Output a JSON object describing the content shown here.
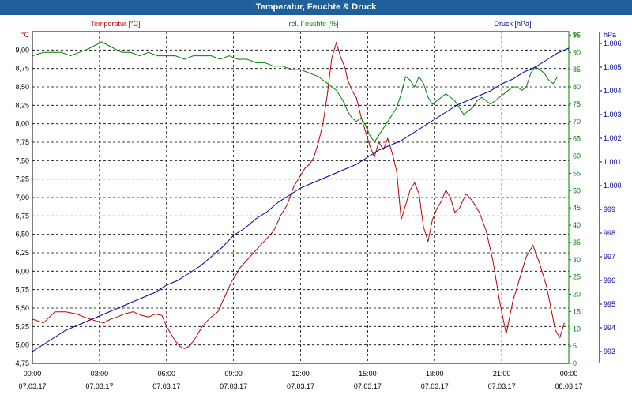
{
  "title": "Temperatur, Feuchte & Druck",
  "chart_data": {
    "type": "line",
    "title": "Temperatur, Feuchte & Druck",
    "grid": true,
    "x_ticks": [
      {
        "time": "00:00",
        "date": "07.03.17"
      },
      {
        "time": "03:00",
        "date": "07.03.17"
      },
      {
        "time": "06:00",
        "date": "07.03.17"
      },
      {
        "time": "09:00",
        "date": "07.03.17"
      },
      {
        "time": "12:00",
        "date": "07.03.17"
      },
      {
        "time": "15:00",
        "date": "07.03.17"
      },
      {
        "time": "18:00",
        "date": "07.03.17"
      },
      {
        "time": "21:00",
        "date": "07.03.17"
      },
      {
        "time": "00:00",
        "date": "08.03.17"
      }
    ],
    "x_range_hours": [
      0,
      24
    ],
    "axes": {
      "temp": {
        "unit": "°C",
        "label": "Temperatur [°C]",
        "range": [
          4.75,
          9.25
        ],
        "ticks": [
          "4,75",
          "5,00",
          "5,25",
          "5,50",
          "5,75",
          "6,00",
          "6,25",
          "6,50",
          "6,75",
          "7,00",
          "7,25",
          "7,50",
          "7,75",
          "8,00",
          "8,25",
          "8,50",
          "8,75",
          "9,00"
        ],
        "color": "#c00000"
      },
      "hum": {
        "unit": "%",
        "label": "rel. Feuchte [%]",
        "range": [
          0,
          96
        ],
        "ticks": [
          "0",
          "5",
          "10",
          "15",
          "20",
          "25",
          "30",
          "35",
          "40",
          "45",
          "50",
          "55",
          "60",
          "65",
          "70",
          "75",
          "80",
          "85",
          "90",
          "95"
        ],
        "color": "#008000"
      },
      "press": {
        "unit": "hPa",
        "label": "Druck [hPa]",
        "range": [
          992.5,
          1006.5
        ],
        "ticks": [
          "993",
          "994",
          "995",
          "996",
          "997",
          "998",
          "999",
          "1.000",
          "1.001",
          "1.002",
          "1.003",
          "1.004",
          "1.005",
          "1.006"
        ],
        "color": "#00009a"
      }
    },
    "series": [
      {
        "name": "Temperatur [°C]",
        "axis": "temp",
        "color": "#c00000",
        "x": [
          0,
          0.5,
          1,
          1.5,
          2,
          2.3,
          2.6,
          2.9,
          3.2,
          3.5,
          3.8,
          4.1,
          4.5,
          4.9,
          5.2,
          5.5,
          5.8,
          6,
          6.2,
          6.4,
          6.6,
          6.8,
          7,
          7.2,
          7.4,
          7.6,
          7.8,
          8,
          8.3,
          8.6,
          8.9,
          9.1,
          9.3,
          9.6,
          9.9,
          10.2,
          10.5,
          10.8,
          11.1,
          11.4,
          11.7,
          12,
          12.2,
          12.4,
          12.6,
          12.8,
          13,
          13.2,
          13.4,
          13.6,
          13.8,
          14,
          14.1,
          14.3,
          14.5,
          14.7,
          14.9,
          15.1,
          15.3,
          15.5,
          15.7,
          15.9,
          16.1,
          16.3,
          16.5,
          16.7,
          16.9,
          17.1,
          17.3,
          17.5,
          17.7,
          17.9,
          18.1,
          18.3,
          18.5,
          18.7,
          18.9,
          19.1,
          19.4,
          19.7,
          20,
          20.3,
          20.6,
          20.9,
          21.2,
          21.5,
          21.8,
          22.1,
          22.4,
          22.7,
          23,
          23.2,
          23.4,
          23.6,
          23.8
        ],
        "y": [
          5.35,
          5.3,
          5.45,
          5.45,
          5.42,
          5.38,
          5.35,
          5.32,
          5.3,
          5.35,
          5.38,
          5.42,
          5.45,
          5.4,
          5.38,
          5.42,
          5.4,
          5.25,
          5.15,
          5.05,
          4.98,
          4.95,
          4.98,
          5.05,
          5.15,
          5.25,
          5.32,
          5.38,
          5.45,
          5.65,
          5.85,
          5.95,
          6.05,
          6.15,
          6.25,
          6.35,
          6.45,
          6.55,
          6.75,
          6.9,
          7.15,
          7.3,
          7.4,
          7.45,
          7.55,
          7.75,
          8.0,
          8.4,
          8.9,
          9.1,
          8.9,
          8.75,
          8.6,
          8.45,
          8.35,
          8.1,
          7.9,
          7.7,
          7.55,
          7.75,
          7.65,
          7.8,
          7.6,
          7.35,
          6.7,
          6.9,
          7.1,
          7.2,
          7.05,
          6.6,
          6.4,
          6.7,
          6.85,
          6.95,
          7.1,
          7.0,
          6.8,
          6.85,
          7.05,
          6.95,
          6.8,
          6.55,
          6.15,
          5.6,
          5.15,
          5.6,
          5.9,
          6.2,
          6.35,
          6.1,
          5.8,
          5.5,
          5.2,
          5.1,
          5.3
        ],
        "note_placeholder": ""
      },
      {
        "name": "rel. Feuchte [%]",
        "axis": "hum",
        "color": "#008000",
        "x": [
          0,
          0.5,
          0.9,
          1.3,
          1.7,
          2.1,
          2.5,
          2.8,
          3.1,
          3.4,
          3.7,
          4.0,
          4.4,
          4.8,
          5.2,
          5.6,
          6,
          6.4,
          6.8,
          7.2,
          7.6,
          8,
          8.4,
          8.8,
          9.2,
          9.6,
          10,
          10.4,
          10.8,
          11.2,
          11.6,
          12,
          12.4,
          12.8,
          13.2,
          13.6,
          13.9,
          14.1,
          14.3,
          14.5,
          14.7,
          14.9,
          15.1,
          15.3,
          15.5,
          15.7,
          15.9,
          16.1,
          16.3,
          16.5,
          16.7,
          16.9,
          17.1,
          17.3,
          17.5,
          17.7,
          17.9,
          18.1,
          18.3,
          18.5,
          18.7,
          18.9,
          19.1,
          19.3,
          19.5,
          19.7,
          19.9,
          20.1,
          20.3,
          20.5,
          20.7,
          20.9,
          21.1,
          21.3,
          21.5,
          21.7,
          21.9,
          22.1,
          22.3,
          22.5,
          22.7,
          22.9,
          23.1,
          23.3,
          23.5
        ],
        "y": [
          89,
          90,
          90,
          90,
          89,
          90,
          91,
          92,
          93,
          92,
          91,
          90,
          90,
          89,
          90,
          89,
          89,
          89,
          88,
          89,
          89,
          89,
          88,
          89,
          88,
          88,
          87,
          87,
          86,
          86,
          85,
          85,
          84,
          83,
          81,
          79,
          76,
          73,
          71,
          70,
          71,
          69,
          66,
          64,
          66,
          68,
          70,
          72,
          74,
          78,
          83,
          82,
          80,
          83,
          81,
          77,
          75,
          76,
          77,
          78,
          77,
          76,
          74,
          72,
          73,
          74,
          76,
          77,
          76,
          75,
          76,
          77,
          78,
          79,
          80,
          80,
          79,
          80,
          84,
          86,
          85,
          84,
          82,
          81,
          83
        ],
        "note_placeholder": ""
      },
      {
        "name": "Druck [hPa]",
        "axis": "press",
        "color": "#00009a",
        "x": [
          0,
          0.5,
          1,
          1.5,
          2,
          2.5,
          3,
          3.5,
          4,
          4.5,
          5,
          5.5,
          6,
          6.5,
          7,
          7.5,
          8,
          8.5,
          9,
          9.5,
          10,
          10.5,
          11,
          11.5,
          12,
          12.5,
          13,
          13.5,
          14,
          14.5,
          15,
          15.5,
          16,
          16.5,
          17,
          17.5,
          18,
          18.5,
          19,
          19.5,
          20,
          20.5,
          21,
          21.5,
          22,
          22.5,
          23,
          23.5,
          24
        ],
        "y": [
          993.0,
          993.3,
          993.6,
          993.9,
          994.1,
          994.3,
          994.5,
          994.7,
          994.9,
          995.1,
          995.3,
          995.5,
          995.8,
          996.0,
          996.3,
          996.6,
          997.0,
          997.4,
          997.9,
          998.2,
          998.6,
          998.9,
          999.3,
          999.6,
          999.9,
          1000.1,
          1000.3,
          1000.5,
          1000.7,
          1000.9,
          1001.2,
          1001.5,
          1001.7,
          1001.9,
          1002.2,
          1002.5,
          1002.8,
          1003.1,
          1003.4,
          1003.6,
          1003.8,
          1004.0,
          1004.3,
          1004.5,
          1004.8,
          1005.0,
          1005.3,
          1005.6,
          1005.8
        ],
        "note_placeholder": ""
      }
    ]
  }
}
